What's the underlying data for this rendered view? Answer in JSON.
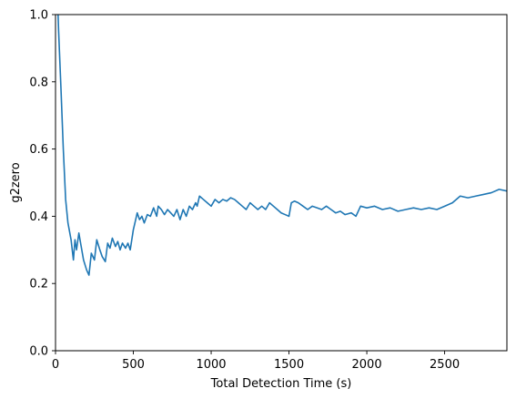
{
  "chart_data": {
    "type": "line",
    "title": "",
    "xlabel": "Total Detection Time (s)",
    "ylabel": "g2zero",
    "xlim": [
      0,
      2900
    ],
    "ylim": [
      0.0,
      1.0
    ],
    "grid": false,
    "legend": "none",
    "x_ticks": [
      "0",
      "500",
      "1000",
      "1500",
      "2000",
      "2500"
    ],
    "x_tick_values": [
      0,
      500,
      1000,
      1500,
      2000,
      2500
    ],
    "y_ticks": [
      "0.0",
      "0.2",
      "0.4",
      "0.6",
      "0.8",
      "1.0"
    ],
    "y_tick_values": [
      0.0,
      0.2,
      0.4,
      0.6,
      0.8,
      1.0
    ],
    "series": [
      {
        "color": "#1f77b4",
        "x": [
          15,
          20,
          35,
          50,
          65,
          80,
          100,
          115,
          125,
          135,
          150,
          165,
          180,
          200,
          215,
          230,
          250,
          265,
          285,
          300,
          320,
          335,
          350,
          365,
          385,
          400,
          415,
          430,
          450,
          465,
          480,
          500,
          510,
          525,
          540,
          555,
          570,
          590,
          610,
          630,
          650,
          660,
          680,
          700,
          720,
          740,
          760,
          780,
          800,
          820,
          840,
          860,
          880,
          900,
          910,
          925,
          950,
          975,
          1000,
          1025,
          1050,
          1075,
          1100,
          1125,
          1150,
          1175,
          1200,
          1225,
          1250,
          1275,
          1300,
          1325,
          1350,
          1375,
          1400,
          1425,
          1450,
          1475,
          1500,
          1515,
          1535,
          1560,
          1590,
          1620,
          1650,
          1680,
          1710,
          1740,
          1770,
          1800,
          1830,
          1860,
          1900,
          1930,
          1960,
          2000,
          2050,
          2100,
          2150,
          2200,
          2250,
          2300,
          2350,
          2400,
          2450,
          2500,
          2550,
          2600,
          2650,
          2700,
          2750,
          2800,
          2850,
          2900
        ],
        "values": [
          1.02,
          0.95,
          0.78,
          0.6,
          0.45,
          0.38,
          0.33,
          0.27,
          0.33,
          0.3,
          0.35,
          0.31,
          0.27,
          0.24,
          0.225,
          0.29,
          0.27,
          0.33,
          0.3,
          0.28,
          0.265,
          0.32,
          0.305,
          0.335,
          0.31,
          0.325,
          0.3,
          0.32,
          0.305,
          0.32,
          0.3,
          0.36,
          0.38,
          0.41,
          0.39,
          0.4,
          0.38,
          0.405,
          0.4,
          0.425,
          0.4,
          0.43,
          0.42,
          0.405,
          0.42,
          0.41,
          0.4,
          0.42,
          0.39,
          0.42,
          0.4,
          0.43,
          0.42,
          0.44,
          0.43,
          0.46,
          0.45,
          0.44,
          0.43,
          0.45,
          0.44,
          0.45,
          0.445,
          0.455,
          0.45,
          0.44,
          0.43,
          0.42,
          0.44,
          0.43,
          0.42,
          0.43,
          0.42,
          0.44,
          0.43,
          0.42,
          0.41,
          0.405,
          0.4,
          0.44,
          0.445,
          0.44,
          0.43,
          0.42,
          0.43,
          0.425,
          0.42,
          0.43,
          0.42,
          0.41,
          0.415,
          0.405,
          0.41,
          0.4,
          0.43,
          0.425,
          0.43,
          0.42,
          0.425,
          0.415,
          0.42,
          0.425,
          0.42,
          0.425,
          0.42,
          0.43,
          0.44,
          0.46,
          0.455,
          0.46,
          0.465,
          0.47,
          0.48,
          0.475
        ]
      }
    ]
  }
}
